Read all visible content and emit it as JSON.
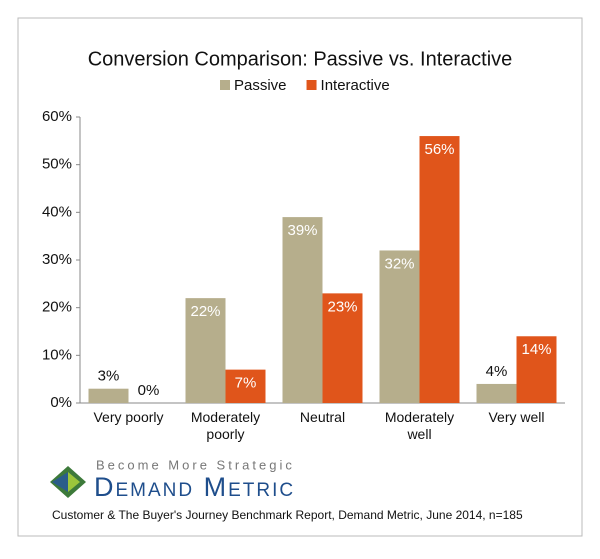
{
  "chart_data": {
    "type": "bar",
    "title": "Conversion Comparison: Passive vs. Interactive",
    "categories": [
      "Very poorly",
      "Moderately poorly",
      "Neutral",
      "Moderately well",
      "Very well"
    ],
    "series": [
      {
        "name": "Passive",
        "color": "#b6ae8c",
        "values": [
          3,
          22,
          39,
          32,
          4
        ],
        "value_labels": [
          "3%",
          "22%",
          "39%",
          "32%",
          "4%"
        ]
      },
      {
        "name": "Interactive",
        "color": "#e0551b",
        "values": [
          0,
          7,
          23,
          56,
          14
        ],
        "value_labels": [
          "0%",
          "7%",
          "23%",
          "56%",
          "14%"
        ]
      }
    ],
    "ylim": [
      0,
      60
    ],
    "yticks": [
      {
        "value": 0,
        "label": "0%"
      },
      {
        "value": 10,
        "label": "10%"
      },
      {
        "value": 20,
        "label": "20%"
      },
      {
        "value": 30,
        "label": "30%"
      },
      {
        "value": 40,
        "label": "40%"
      },
      {
        "value": 50,
        "label": "50%"
      },
      {
        "value": 60,
        "label": "60%"
      }
    ],
    "grid": false,
    "legend": "top"
  },
  "logo": {
    "tagline": "Become More Strategic",
    "name": "Demand Metric"
  },
  "footer": "Customer & The Buyer's Journey Benchmark Report, Demand Metric, June 2014, n=185"
}
